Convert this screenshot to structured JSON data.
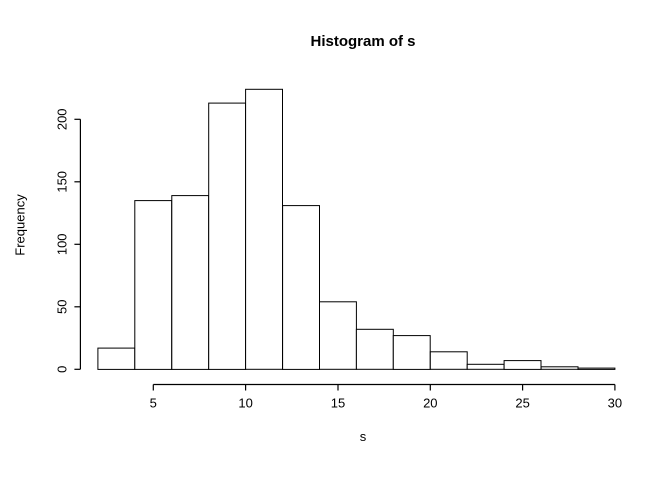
{
  "chart_data": {
    "type": "bar",
    "subtype": "histogram",
    "title": "Histogram of s",
    "xlabel": "s",
    "ylabel": "Frequency",
    "bin_width": 2,
    "bin_edges": [
      2,
      4,
      6,
      8,
      10,
      12,
      14,
      16,
      18,
      20,
      22,
      24,
      26,
      28,
      30
    ],
    "frequencies": [
      17,
      135,
      139,
      213,
      224,
      131,
      54,
      32,
      27,
      14,
      4,
      7,
      2,
      1
    ],
    "total_count": 1000,
    "x_ticks": [
      5,
      10,
      15,
      20,
      25,
      30
    ],
    "y_ticks": [
      0,
      50,
      100,
      150,
      200
    ],
    "xlim": [
      2,
      30
    ],
    "ylim": [
      0,
      224
    ],
    "grid": false,
    "legend": false,
    "bar_fill": "#ffffff",
    "bar_border": "#000000",
    "axis_color": "#000000",
    "background": "#ffffff"
  }
}
